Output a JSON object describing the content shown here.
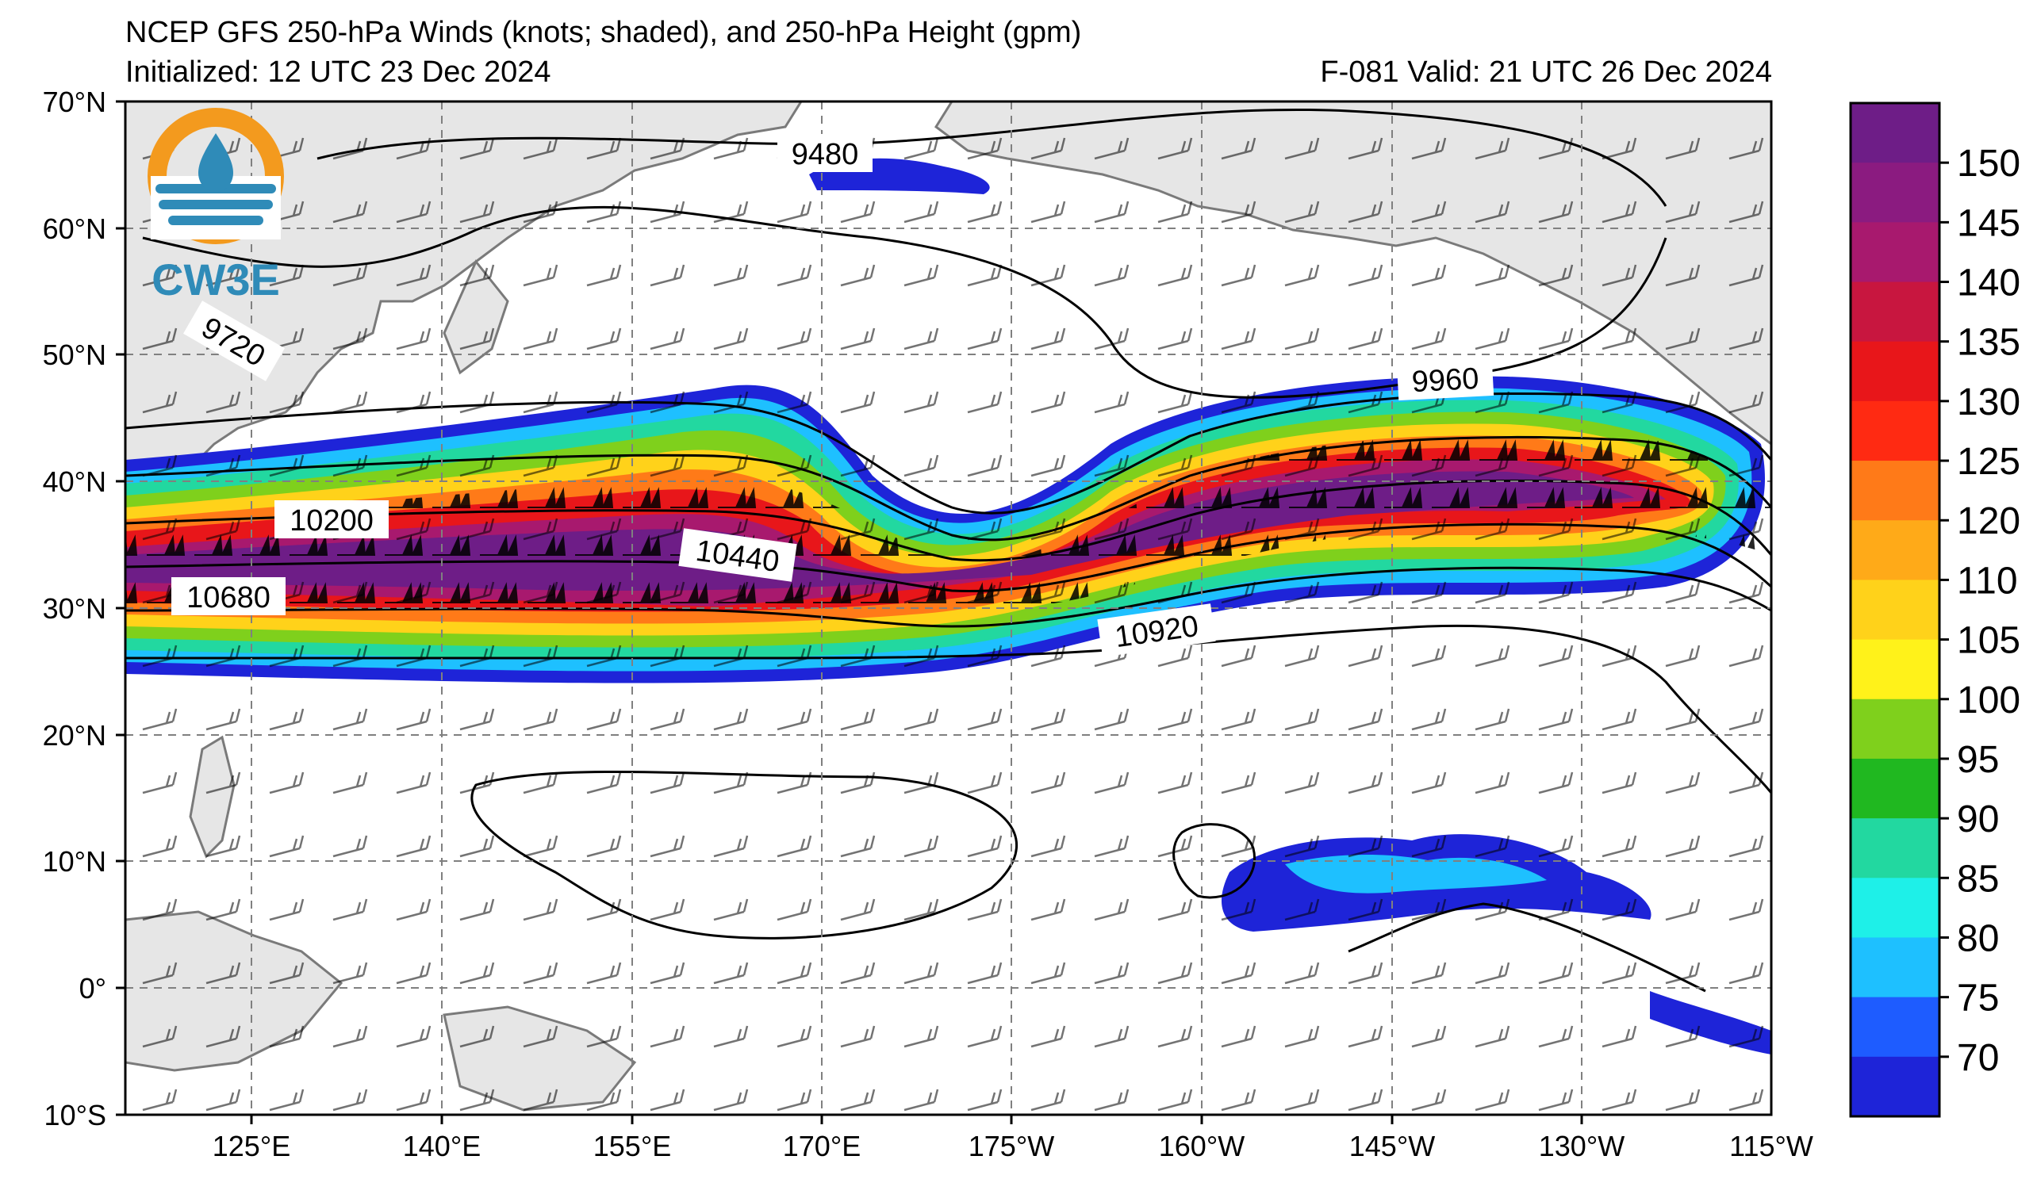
{
  "header": {
    "title": "NCEP GFS 250-hPa Winds (knots; shaded), and 250-hPa Height (gpm)",
    "initialized": "Initialized: 12 UTC 23 Dec 2024",
    "valid": "F-081  Valid: 21 UTC 26 Dec 2024"
  },
  "logo": {
    "text": "CW3E"
  },
  "axes": {
    "lat_labels": [
      "70°N",
      "60°N",
      "50°N",
      "40°N",
      "30°N",
      "20°N",
      "10°N",
      "0°",
      "10°S"
    ],
    "lon_labels": [
      "125°E",
      "140°E",
      "155°E",
      "170°E",
      "175°W",
      "160°W",
      "145°W",
      "130°W",
      "115°W"
    ]
  },
  "contour_labels": [
    "9480",
    "9720",
    "9960",
    "10200",
    "10440",
    "10680",
    "10920"
  ],
  "colorbar": {
    "labels": [
      "150",
      "145",
      "140",
      "135",
      "130",
      "125",
      "120",
      "110",
      "105",
      "100",
      "95",
      "90",
      "85",
      "80",
      "75",
      "70"
    ],
    "colors": [
      "#6e1d87",
      "#8b1b80",
      "#a8196e",
      "#c8163f",
      "#e8161a",
      "#ff2a12",
      "#ff7a18",
      "#ffaa18",
      "#ffd21a",
      "#fff21a",
      "#7fd01c",
      "#20b820",
      "#22d8a0",
      "#1ef0e8",
      "#1ec0ff",
      "#1e5cff",
      "#1e24d8"
    ]
  }
}
